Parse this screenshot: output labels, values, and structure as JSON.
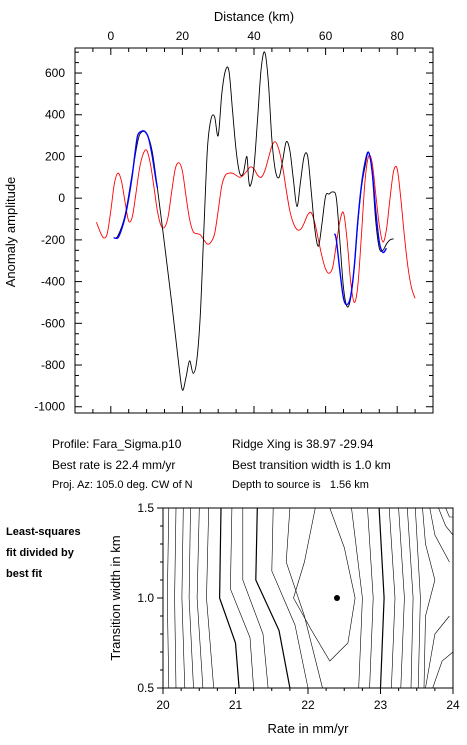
{
  "chart_data": [
    {
      "type": "line",
      "xlabel_top": "Distance (km)",
      "ylabel": "Anomaly amplitude",
      "xlim": [
        -10,
        90
      ],
      "ylim": [
        -1030,
        720
      ],
      "xticks": [
        0,
        20,
        40,
        60,
        80
      ],
      "yticks": [
        600,
        400,
        200,
        0,
        -200,
        -400,
        -600,
        -800,
        -1000
      ],
      "xtick_labels": [
        "0",
        "20",
        "40",
        "60",
        "80"
      ],
      "ytick_labels": [
        "600",
        "400",
        "200",
        "0",
        "-200",
        "-400",
        "-600",
        "-800",
        "-1000"
      ],
      "grid": false,
      "series": [
        {
          "color": "#000000",
          "x": [
            0.8,
            2,
            4,
            6,
            7.5,
            8.5,
            10,
            11.5,
            13,
            15,
            17,
            19,
            20,
            21,
            22,
            23,
            24,
            25,
            26,
            27,
            28,
            29,
            30,
            31,
            32,
            33,
            34,
            35,
            36,
            37,
            38,
            38.5,
            39,
            40,
            41,
            42,
            43,
            44,
            45,
            46,
            47,
            48,
            49,
            50,
            51,
            52,
            53,
            54,
            55,
            56,
            57,
            58,
            59,
            60,
            61,
            62,
            63,
            64,
            65,
            66,
            67,
            68,
            69,
            70,
            71,
            72,
            73,
            74,
            75,
            76,
            77,
            78,
            79
          ],
          "y": [
            -190,
            -180,
            -80,
            120,
            270,
            315,
            310,
            230,
            50,
            -220,
            -500,
            -800,
            -920,
            -860,
            -780,
            -840,
            -780,
            -560,
            -150,
            240,
            380,
            390,
            300,
            500,
            610,
            610,
            420,
            230,
            120,
            120,
            200,
            90,
            60,
            150,
            380,
            620,
            700,
            560,
            280,
            130,
            100,
            180,
            270,
            230,
            90,
            -40,
            80,
            200,
            200,
            30,
            -150,
            -230,
            -120,
            10,
            20,
            30,
            0,
            -210,
            -430,
            -520,
            -480,
            -330,
            -120,
            50,
            150,
            220,
            120,
            -110,
            -240,
            -250,
            -220,
            -200,
            -195
          ]
        },
        {
          "color": "#0000ff",
          "x": [
            0.8,
            2,
            3,
            4,
            5,
            6,
            6.8,
            7.5,
            8.5,
            9.5,
            10.5,
            11.5,
            12.5,
            13
          ],
          "y": [
            -190,
            -190,
            -150,
            -90,
            0,
            110,
            220,
            300,
            320,
            320,
            290,
            210,
            100,
            50
          ]
        },
        {
          "color": "#0000ff",
          "x": [
            62.5,
            63,
            64,
            65,
            66,
            67,
            68,
            69,
            70,
            71,
            72,
            73,
            74,
            75,
            76,
            77
          ],
          "y": [
            -170,
            -200,
            -350,
            -480,
            -510,
            -470,
            -330,
            -110,
            60,
            170,
            220,
            130,
            -60,
            -210,
            -260,
            -240
          ]
        },
        {
          "color": "#ff0000",
          "x": [
            -4,
            -3,
            -2,
            -1,
            0,
            1,
            2,
            3,
            4,
            5,
            6,
            7,
            8,
            9,
            10,
            11,
            12,
            13,
            14,
            15,
            16,
            17,
            18,
            19,
            20,
            21,
            22,
            23,
            24,
            25,
            26,
            27,
            28,
            29,
            30,
            31,
            32,
            33,
            34,
            35,
            36,
            37,
            38,
            39,
            40,
            41,
            42,
            43,
            44,
            45,
            46,
            47,
            48,
            49,
            50,
            51,
            52,
            53,
            54,
            55,
            56,
            57,
            58,
            59,
            60,
            61,
            62,
            63,
            64,
            65,
            66,
            67,
            68,
            69,
            70,
            71,
            72,
            73,
            74,
            75,
            76,
            77,
            78,
            79,
            80,
            81,
            82,
            83,
            84,
            85
          ],
          "y": [
            -115,
            -160,
            -190,
            -170,
            -60,
            70,
            120,
            80,
            -20,
            -110,
            -90,
            20,
            140,
            210,
            230,
            170,
            60,
            -60,
            -130,
            -140,
            -90,
            30,
            140,
            170,
            130,
            10,
            -100,
            -160,
            -170,
            -175,
            -200,
            -220,
            -210,
            -170,
            -60,
            60,
            110,
            120,
            120,
            110,
            100,
            110,
            130,
            150,
            140,
            110,
            100,
            130,
            190,
            250,
            270,
            230,
            150,
            40,
            -60,
            -120,
            -150,
            -150,
            -120,
            -80,
            -70,
            -120,
            -200,
            -280,
            -340,
            -360,
            -330,
            -220,
            -110,
            -70,
            -200,
            -400,
            -500,
            -420,
            -180,
            80,
            200,
            170,
            20,
            -130,
            -210,
            -150,
            0,
            130,
            140,
            0,
            -180,
            -330,
            -430,
            -480
          ]
        }
      ]
    },
    {
      "type": "contour",
      "xlabel": "Rate in mm/yr",
      "ylabel": "Transition width in km",
      "xlim": [
        20,
        24
      ],
      "ylim": [
        0.5,
        1.5
      ],
      "xticks": [
        20,
        21,
        22,
        23,
        24
      ],
      "xtick_labels": [
        "20",
        "21",
        "22",
        "23",
        "24"
      ],
      "yticks": [
        0.5,
        1.0,
        1.5
      ],
      "ytick_labels": [
        "0.5",
        "1.0",
        "1.5"
      ],
      "grid": false,
      "best_fit_point": [
        22.4,
        1.0
      ],
      "note_lines": [
        "Least-squares",
        "fit divided by",
        "best fit"
      ]
    }
  ],
  "info": {
    "profile": "Profile: Fara_Sigma.p10",
    "ridge": "Ridge Xing is 38.97 -29.94",
    "best_rate": "Best rate is 22.4 mm/yr",
    "best_width": "Best transition width is 1.0 km",
    "proj": "Proj. Az: 105.0 deg. CW of N",
    "depth": "Depth to source is   1.56 km"
  }
}
